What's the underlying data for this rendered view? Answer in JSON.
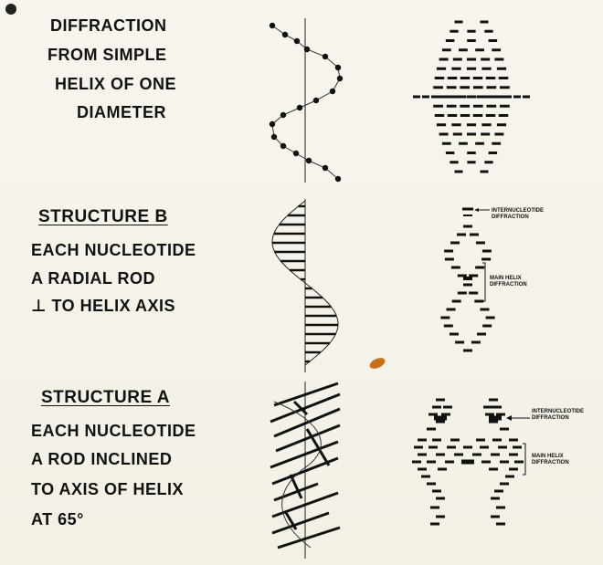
{
  "panel1": {
    "lines": [
      "DIFFRACTION",
      "FROM SIMPLE",
      "HELIX OF ONE",
      "DIAMETER"
    ]
  },
  "panel2": {
    "heading": "STRUCTURE B",
    "lines": [
      "EACH NUCLEOTIDE",
      "A RADIAL ROD",
      "⊥ TO HELIX AXIS"
    ],
    "label_internucleotide": [
      "INTERNUCLEOTIDE",
      "DIFFRACTION"
    ],
    "label_main_helix": [
      "MAIN HELIX",
      "DIFFRACTION"
    ]
  },
  "panel3": {
    "heading": "STRUCTURE A",
    "lines": [
      "EACH NUCLEOTIDE",
      "A ROD INCLINED",
      "TO AXIS OF HELIX",
      "AT 65°"
    ],
    "label_internucleotide": [
      "INTERNUCLEOTIDE",
      "DIFFRACTION"
    ],
    "label_main_helix": [
      "MAIN HELIX",
      "DIFFRACTION"
    ]
  },
  "colors": {
    "ink": "#111111",
    "board": "#f6f3ea",
    "chip": "#c8701c"
  }
}
